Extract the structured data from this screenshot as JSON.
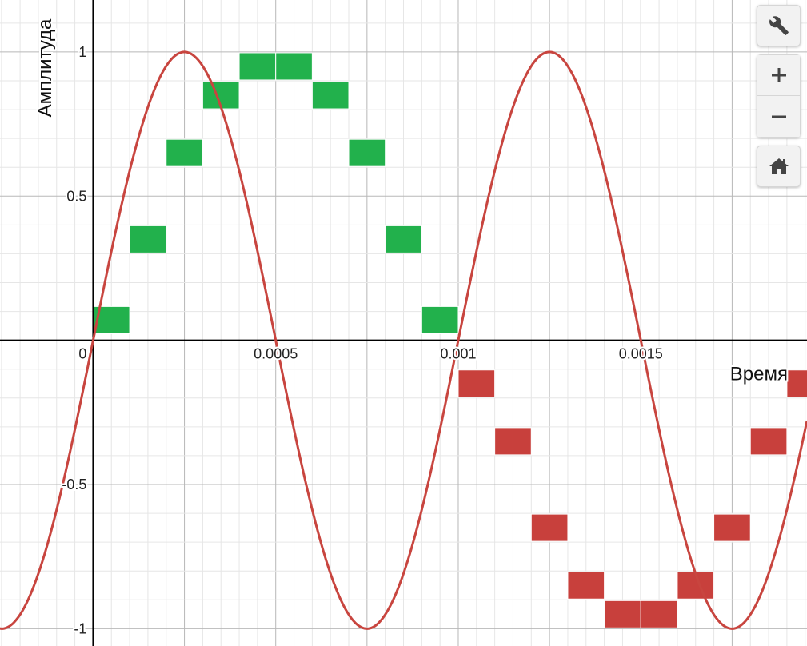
{
  "chart_data": {
    "type": "line",
    "title": "",
    "xlabel": "Время",
    "ylabel": "Амплитуда",
    "xlim": [
      -0.000255,
      0.001955
    ],
    "ylim": [
      -1.06,
      1.18
    ],
    "x_ticks": [
      {
        "value": 0,
        "label": "0"
      },
      {
        "value": 0.0005,
        "label": "0.0005"
      },
      {
        "value": 0.001,
        "label": "0.001"
      },
      {
        "value": 0.0015,
        "label": "0.0015"
      }
    ],
    "y_ticks": [
      {
        "value": 1,
        "label": "1"
      },
      {
        "value": 0.5,
        "label": "0.5"
      },
      {
        "value": -0.5,
        "label": "-0.5"
      },
      {
        "value": -1,
        "label": "-1"
      }
    ],
    "grid": true,
    "series": [
      {
        "kind": "curve",
        "function": "sin(2*pi*1000*t)",
        "frequency_hz": 1000,
        "amplitude": 1,
        "color": "#c8453f"
      },
      {
        "kind": "sample-blocks",
        "color": "#22b14c",
        "sample_width": 0.0001,
        "points": [
          {
            "x": 5e-05,
            "y": 0.07
          },
          {
            "x": 0.00015,
            "y": 0.35
          },
          {
            "x": 0.00025,
            "y": 0.65
          },
          {
            "x": 0.00035,
            "y": 0.85
          },
          {
            "x": 0.00045,
            "y": 0.95
          },
          {
            "x": 0.00055,
            "y": 0.95
          },
          {
            "x": 0.00065,
            "y": 0.85
          },
          {
            "x": 0.00075,
            "y": 0.65
          },
          {
            "x": 0.00085,
            "y": 0.35
          },
          {
            "x": 0.00095,
            "y": 0.07
          }
        ]
      },
      {
        "kind": "sample-blocks",
        "color": "#c8403c",
        "sample_width": 0.0001,
        "points": [
          {
            "x": 0.00105,
            "y": -0.15
          },
          {
            "x": 0.00115,
            "y": -0.35
          },
          {
            "x": 0.00125,
            "y": -0.65
          },
          {
            "x": 0.00135,
            "y": -0.85
          },
          {
            "x": 0.00145,
            "y": -0.95
          },
          {
            "x": 0.00155,
            "y": -0.95
          },
          {
            "x": 0.00165,
            "y": -0.85
          },
          {
            "x": 0.00175,
            "y": -0.65
          },
          {
            "x": 0.00185,
            "y": -0.35
          },
          {
            "x": 0.00195,
            "y": -0.15
          }
        ]
      }
    ]
  },
  "toolbar": {
    "settings_icon": "wrench-icon",
    "zoom_in_icon": "plus-icon",
    "zoom_out_icon": "minus-icon",
    "home_icon": "home-icon"
  }
}
